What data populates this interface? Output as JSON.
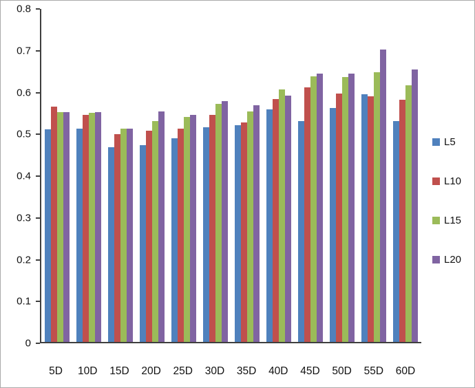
{
  "chart_data": {
    "type": "bar",
    "title": "",
    "xlabel": "",
    "ylabel": "",
    "grid": false,
    "legend_position": "right",
    "ylim": [
      0,
      0.8
    ],
    "yticks": [
      "0",
      "0.1",
      "0.2",
      "0.3",
      "0.4",
      "0.5",
      "0.6",
      "0.7",
      "0.8"
    ],
    "categories": [
      "5D",
      "10D",
      "15D",
      "20D",
      "25D",
      "30D",
      "35D",
      "40D",
      "45D",
      "50D",
      "55D",
      "60D"
    ],
    "series": [
      {
        "name": "L5",
        "values": [
          0.51,
          0.512,
          0.468,
          0.473,
          0.49,
          0.515,
          0.52,
          0.558,
          0.531,
          0.562,
          0.595,
          0.53
        ]
      },
      {
        "name": "L10",
        "values": [
          0.565,
          0.545,
          0.5,
          0.508,
          0.512,
          0.545,
          0.528,
          0.583,
          0.611,
          0.597,
          0.59,
          0.582
        ]
      },
      {
        "name": "L15",
        "values": [
          0.552,
          0.551,
          0.512,
          0.53,
          0.54,
          0.572,
          0.553,
          0.607,
          0.638,
          0.637,
          0.648,
          0.617
        ]
      },
      {
        "name": "L20",
        "values": [
          0.552,
          0.552,
          0.513,
          0.553,
          0.546,
          0.578,
          0.568,
          0.592,
          0.645,
          0.645,
          0.703,
          0.655
        ]
      }
    ],
    "colors": [
      "#4f81bd",
      "#c0504d",
      "#9bbb59",
      "#8064a2"
    ]
  }
}
